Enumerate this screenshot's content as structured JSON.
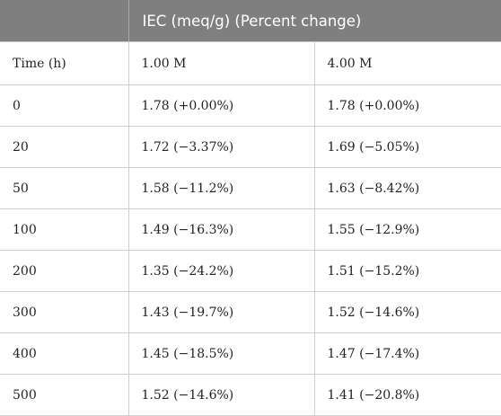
{
  "table": {
    "group_header": "IEC (meq/g) (Percent change)",
    "columns": [
      "Time (h)",
      "1.00 M",
      "4.00 M"
    ],
    "rows": [
      {
        "time": "0",
        "c1": "1.78 (+0.00%)",
        "c2": "1.78 (+0.00%)"
      },
      {
        "time": "20",
        "c1": "1.72 (−3.37%)",
        "c2": "1.69 (−5.05%)"
      },
      {
        "time": "50",
        "c1": "1.58 (−11.2%)",
        "c2": "1.63 (−8.42%)"
      },
      {
        "time": "100",
        "c1": "1.49 (−16.3%)",
        "c2": "1.55 (−12.9%)"
      },
      {
        "time": "200",
        "c1": "1.35 (−24.2%)",
        "c2": "1.51 (−15.2%)"
      },
      {
        "time": "300",
        "c1": "1.43 (−19.7%)",
        "c2": "1.52 (−14.6%)"
      },
      {
        "time": "400",
        "c1": "1.45 (−18.5%)",
        "c2": "1.47 (−17.4%)"
      },
      {
        "time": "500",
        "c1": "1.52 (−14.6%)",
        "c2": "1.41 (−20.8%)"
      }
    ]
  },
  "colors": {
    "header_bg": "#7f7f7f",
    "header_text": "#ffffff",
    "grid_line": "#cfcfcf"
  }
}
